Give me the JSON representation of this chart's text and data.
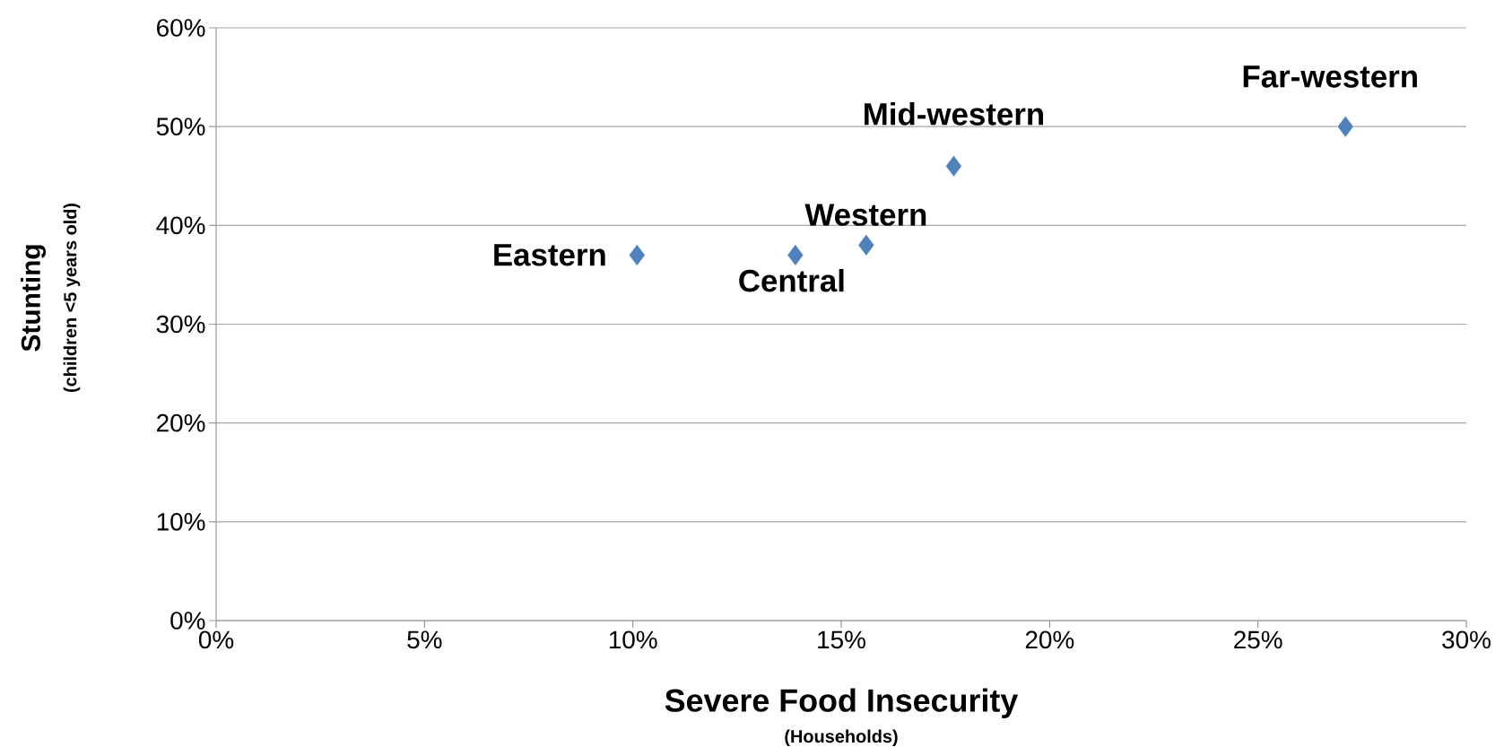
{
  "chart_data": {
    "type": "scatter",
    "xlabel": "Severe Food Insecurity",
    "ylabel": "Stunting",
    "x": [
      10.1,
      13.9,
      15.6,
      17.7,
      27.1
    ],
    "series": [
      {
        "color": "#4f81bd",
        "values": [
          37,
          37,
          38,
          46,
          50
        ]
      }
    ],
    "marker": "diamond",
    "grid": "y",
    "legend": false,
    "xlim": [
      0,
      30
    ],
    "ylim": [
      0,
      60
    ],
    "xticks": [
      {
        "value": 0,
        "label": "0%"
      },
      {
        "value": 5,
        "label": "5%"
      },
      {
        "value": 10,
        "label": "10%"
      },
      {
        "value": 15,
        "label": "15%"
      },
      {
        "value": 20,
        "label": "20%"
      },
      {
        "value": 25,
        "label": "25%"
      },
      {
        "value": 30,
        "label": "30%"
      }
    ],
    "yticks": [
      {
        "value": 0,
        "label": "0%"
      },
      {
        "value": 10,
        "label": "10%"
      },
      {
        "value": 20,
        "label": "20%"
      },
      {
        "value": 30,
        "label": "30%"
      },
      {
        "value": 40,
        "label": "40%"
      },
      {
        "value": 50,
        "label": "50%"
      },
      {
        "value": 60,
        "label": "60%"
      }
    ],
    "annotations": [
      {
        "text": "Eastern",
        "x": 10.1,
        "y": 37
      },
      {
        "text": "Central",
        "x": 13.9,
        "y": 37
      },
      {
        "text": "Western",
        "x": 15.6,
        "y": 38
      },
      {
        "text": "Mid-western",
        "x": 17.7,
        "y": 46
      },
      {
        "text": "Far-western",
        "x": 27.1,
        "y": 50
      },
      "(Households)",
      "(children <5 years old)"
    ]
  }
}
